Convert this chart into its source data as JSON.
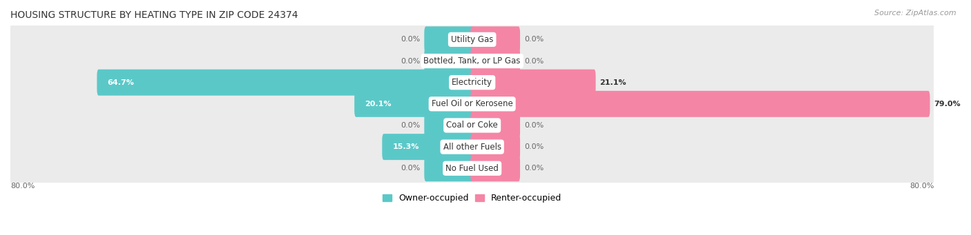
{
  "title": "HOUSING STRUCTURE BY HEATING TYPE IN ZIP CODE 24374",
  "source": "Source: ZipAtlas.com",
  "categories": [
    "Utility Gas",
    "Bottled, Tank, or LP Gas",
    "Electricity",
    "Fuel Oil or Kerosene",
    "Coal or Coke",
    "All other Fuels",
    "No Fuel Used"
  ],
  "owner_values": [
    0.0,
    0.0,
    64.7,
    20.1,
    0.0,
    15.3,
    0.0
  ],
  "renter_values": [
    0.0,
    0.0,
    21.1,
    79.0,
    0.0,
    0.0,
    0.0
  ],
  "owner_color": "#5bc8c8",
  "renter_color": "#f585a5",
  "row_bg_color": "#ebebeb",
  "xlim_left": -80.0,
  "xlim_right": 80.0,
  "min_bar_width": 8.0,
  "title_fontsize": 10,
  "source_fontsize": 8,
  "value_fontsize": 8,
  "category_fontsize": 8.5,
  "legend_fontsize": 9,
  "bar_height": 0.62,
  "background_color": "#ffffff",
  "owner_label": "Owner-occupied",
  "renter_label": "Renter-occupied"
}
